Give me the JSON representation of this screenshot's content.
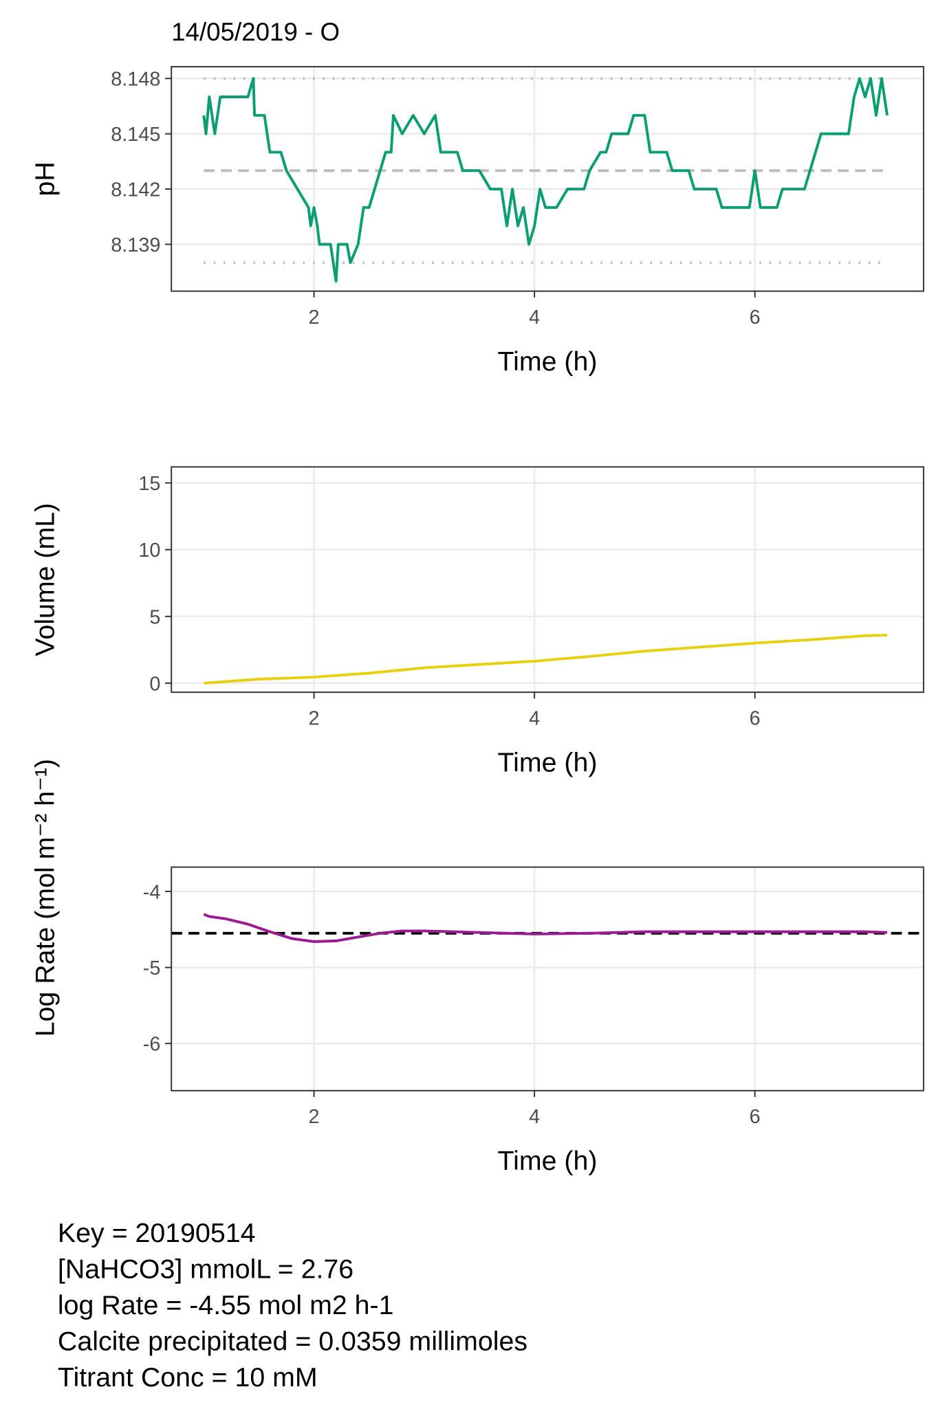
{
  "chart_data": [
    {
      "type": "line",
      "title": "14/05/2019 - O",
      "x_label": "Time (h)",
      "y_label": "pH",
      "xlim": [
        0.706,
        7.53
      ],
      "ylim": [
        8.13646,
        8.14864
      ],
      "xticks": [
        2,
        4,
        6
      ],
      "yticks": [
        {
          "value": 8.139,
          "label": "8.139"
        },
        {
          "value": 8.142,
          "label": "8.142"
        },
        {
          "value": 8.145,
          "label": "8.145"
        },
        {
          "value": 8.148,
          "label": "8.148"
        }
      ],
      "grid": true,
      "hlines": [
        {
          "value": 8.148,
          "style": "dotted",
          "color": "#bdbdbd",
          "x_span": [
            1,
            7.2
          ]
        },
        {
          "value": 8.143,
          "style": "dashed",
          "color": "#bdbdbd",
          "x_span": [
            1,
            7.2
          ]
        },
        {
          "value": 8.138,
          "style": "dotted",
          "color": "#bdbdbd",
          "x_span": [
            1,
            7.2
          ]
        }
      ],
      "series": [
        {
          "color": "#0b9e73",
          "x": [
            1.0,
            1.02,
            1.05,
            1.1,
            1.15,
            1.4,
            1.45,
            1.46,
            1.55,
            1.6,
            1.7,
            1.75,
            1.85,
            1.95,
            1.97,
            2.0,
            2.03,
            2.05,
            2.15,
            2.2,
            2.22,
            2.3,
            2.33,
            2.4,
            2.45,
            2.5,
            2.55,
            2.6,
            2.65,
            2.7,
            2.72,
            2.8,
            2.9,
            3.0,
            3.1,
            3.15,
            3.3,
            3.35,
            3.5,
            3.6,
            3.7,
            3.75,
            3.8,
            3.85,
            3.9,
            3.95,
            4.0,
            4.05,
            4.1,
            4.2,
            4.3,
            4.45,
            4.5,
            4.6,
            4.65,
            4.7,
            4.85,
            4.9,
            5.0,
            5.05,
            5.2,
            5.25,
            5.4,
            5.45,
            5.65,
            5.7,
            5.95,
            6.0,
            6.05,
            6.2,
            6.25,
            6.45,
            6.5,
            6.55,
            6.6,
            6.85,
            6.9,
            6.95,
            7.0,
            7.05,
            7.1,
            7.15,
            7.2
          ],
          "values": [
            8.146,
            8.145,
            8.147,
            8.145,
            8.147,
            8.147,
            8.148,
            8.146,
            8.146,
            8.144,
            8.144,
            8.143,
            8.142,
            8.141,
            8.14,
            8.141,
            8.14,
            8.139,
            8.139,
            8.137,
            8.139,
            8.139,
            8.138,
            8.139,
            8.141,
            8.141,
            8.142,
            8.143,
            8.144,
            8.144,
            8.146,
            8.145,
            8.146,
            8.145,
            8.146,
            8.144,
            8.144,
            8.143,
            8.143,
            8.142,
            8.142,
            8.14,
            8.142,
            8.14,
            8.141,
            8.139,
            8.14,
            8.142,
            8.141,
            8.141,
            8.142,
            8.142,
            8.143,
            8.144,
            8.144,
            8.145,
            8.145,
            8.146,
            8.146,
            8.144,
            8.144,
            8.143,
            8.143,
            8.142,
            8.142,
            8.141,
            8.141,
            8.143,
            8.141,
            8.141,
            8.142,
            8.142,
            8.143,
            8.144,
            8.145,
            8.145,
            8.147,
            8.148,
            8.147,
            8.148,
            8.146,
            8.148,
            8.146
          ]
        }
      ]
    },
    {
      "type": "line",
      "x_label": "Time (h)",
      "y_label": "Volume (mL)",
      "xlim": [
        0.706,
        7.53
      ],
      "ylim": [
        -0.68,
        16.2
      ],
      "xticks": [
        2,
        4,
        6
      ],
      "yticks": [
        0,
        5,
        10,
        15
      ],
      "grid": true,
      "series": [
        {
          "color": "#e8cf10",
          "x": [
            1,
            1.5,
            2,
            2.5,
            3,
            3.5,
            4,
            4.5,
            5,
            5.5,
            6,
            6.5,
            7,
            7.2
          ],
          "values": [
            0,
            0.3,
            0.45,
            0.75,
            1.15,
            1.4,
            1.65,
            2.0,
            2.4,
            2.7,
            3.0,
            3.25,
            3.55,
            3.6
          ]
        }
      ]
    },
    {
      "type": "line",
      "x_label": "Time (h)",
      "y_label": "Log Rate (mol m⁻² h⁻¹)",
      "xlim": [
        0.706,
        7.53
      ],
      "ylim": [
        -6.62,
        -3.68
      ],
      "xticks": [
        2,
        4,
        6
      ],
      "yticks": [
        -6,
        -5,
        -4
      ],
      "grid": true,
      "hlines": [
        {
          "value": -4.55,
          "style": "dashed",
          "color": "#000000"
        }
      ],
      "series": [
        {
          "color": "#9b1b93",
          "x": [
            1.0,
            1.05,
            1.2,
            1.4,
            1.6,
            1.8,
            2.0,
            2.2,
            2.4,
            2.6,
            2.8,
            3.0,
            3.5,
            4.0,
            4.5,
            5.0,
            5.5,
            6.0,
            6.5,
            7.0,
            7.2
          ],
          "values": [
            -4.3,
            -4.33,
            -4.36,
            -4.43,
            -4.53,
            -4.62,
            -4.66,
            -4.65,
            -4.6,
            -4.55,
            -4.52,
            -4.52,
            -4.54,
            -4.56,
            -4.55,
            -4.53,
            -4.53,
            -4.53,
            -4.53,
            -4.53,
            -4.54
          ]
        }
      ]
    }
  ],
  "annotations": [
    "Key =  20190514",
    "[NaHCO3] mmolL =  2.76",
    "log Rate = -4.55 mol m2 h-1",
    "Calcite precipitated = 0.0359 millimoles",
    "Titrant Conc = 10 mM"
  ]
}
